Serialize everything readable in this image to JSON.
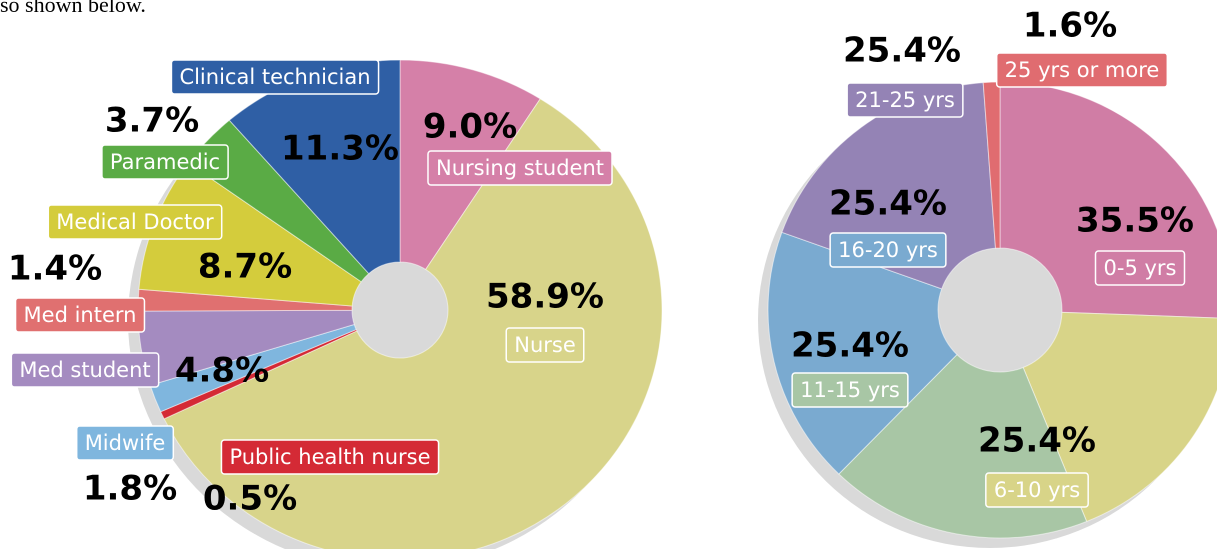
{
  "caption": "so shown below.",
  "chart_data": [
    {
      "type": "donut",
      "categories": [
        "Nursing student",
        "Nurse",
        "Public health nurse",
        "Midwife",
        "Med student",
        "Med intern",
        "Medical Doctor",
        "Paramedic",
        "Clinical technician"
      ],
      "values": [
        9.0,
        58.9,
        0.5,
        1.8,
        4.8,
        1.4,
        8.7,
        3.7,
        11.3
      ],
      "value_labels": [
        "9.0%",
        "58.9%",
        "0.5%",
        "1.8%",
        "4.8%",
        "1.4%",
        "8.7%",
        "3.7%",
        "11.3%"
      ],
      "colors": [
        "#d580a8",
        "#d8d48a",
        "#d42a35",
        "#7fb6de",
        "#a48bc0",
        "#e07070",
        "#d4cc3c",
        "#5aab45",
        "#2f5fa5"
      ]
    },
    {
      "type": "donut",
      "categories": [
        "0-5 yrs",
        "6-10 yrs",
        "11-15 yrs",
        "16-20 yrs",
        "21-25 yrs",
        "25 yrs or more"
      ],
      "values": [
        35.5,
        25.4,
        25.4,
        25.4,
        25.4,
        1.6
      ],
      "value_labels": [
        "35.5%",
        "25.4%",
        "25.4%",
        "25.4%",
        "25.4%",
        "1.6%"
      ],
      "colors": [
        "#d07da5",
        "#d8d488",
        "#a8c6a5",
        "#7aaad0",
        "#9483b5",
        "#e06c70"
      ]
    }
  ]
}
